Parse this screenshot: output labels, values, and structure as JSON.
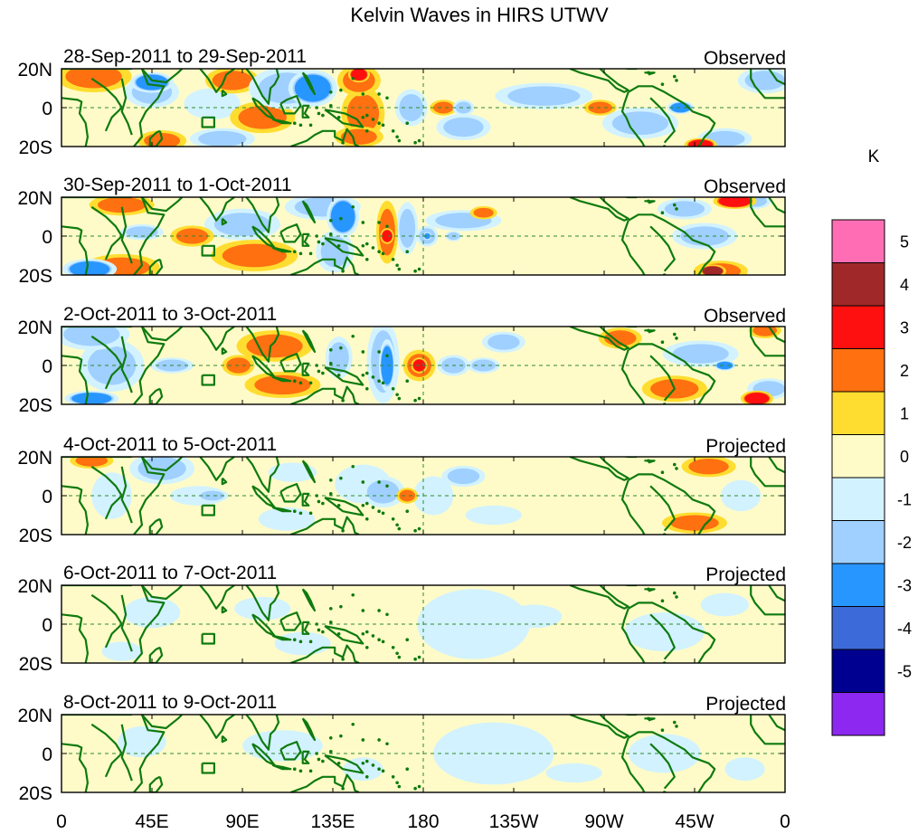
{
  "chart_data": {
    "type": "heatmap",
    "title": "Kelvin Waves in HIRS UTWV",
    "x_tick_labels": [
      "0",
      "45E",
      "90E",
      "135E",
      "180",
      "135W",
      "90W",
      "45W",
      "0"
    ],
    "x_ticks_lon": [
      0,
      45,
      90,
      135,
      180,
      225,
      270,
      315,
      360
    ],
    "y_tick_labels": [
      "20N",
      "0",
      "20S"
    ],
    "y_ticks_lat": [
      20,
      0,
      -20
    ],
    "lat_range": [
      -20,
      20
    ],
    "lon_range": [
      0,
      360
    ],
    "colorbar": {
      "unit_label": "K",
      "tick_labels": [
        "5",
        "4",
        "3",
        "2",
        "1",
        "0",
        "-1",
        "-2",
        "-3",
        "-4",
        "-5"
      ],
      "colors": [
        "#ff6eb4",
        "#a02828",
        "#ff1010",
        "#ff7010",
        "#ffdd30",
        "#fffbc8",
        "#d2f2ff",
        "#a0d0ff",
        "#2896ff",
        "#3c6ad8",
        "#000090",
        "#8c28f0"
      ]
    },
    "panels": [
      {
        "date_range": "28-Sep-2011 to 29-Sep-2011",
        "kind": "Observed",
        "anomalies": [
          {
            "lon": 16,
            "lat": 16,
            "lw": 14,
            "lh": 6,
            "v": 1.5
          },
          {
            "lon": 45,
            "lat": 8,
            "lw": 10,
            "lh": 6,
            "v": -1.5
          },
          {
            "lon": 45,
            "lat": 13,
            "lw": 8,
            "lh": 4,
            "v": -2.2
          },
          {
            "lon": 50,
            "lat": -17,
            "lw": 9,
            "lh": 4,
            "v": 1.5
          },
          {
            "lon": 75,
            "lat": 2,
            "lw": 14,
            "lh": 8,
            "v": -0.6
          },
          {
            "lon": 85,
            "lat": 14,
            "lw": 10,
            "lh": 5,
            "v": 1.3
          },
          {
            "lon": 80,
            "lat": -16,
            "lw": 12,
            "lh": 4,
            "v": -1.6
          },
          {
            "lon": 100,
            "lat": -5,
            "lw": 12,
            "lh": 6,
            "v": 1.3
          },
          {
            "lon": 112,
            "lat": 10,
            "lw": 14,
            "lh": 8,
            "v": -1.3
          },
          {
            "lon": 125,
            "lat": 10,
            "lw": 9,
            "lh": 7,
            "v": -2.2
          },
          {
            "lon": 148,
            "lat": 14,
            "lw": 8,
            "lh": 6,
            "v": 1.6
          },
          {
            "lon": 148,
            "lat": 17,
            "lw": 4,
            "lh": 3,
            "v": 2.6
          },
          {
            "lon": 150,
            "lat": -3,
            "lw": 8,
            "lh": 10,
            "v": 1.4
          },
          {
            "lon": 148,
            "lat": -15,
            "lw": 9,
            "lh": 4,
            "v": 1.8
          },
          {
            "lon": 174,
            "lat": 0,
            "lw": 6,
            "lh": 7,
            "v": -1.3
          },
          {
            "lon": 190,
            "lat": 0,
            "lw": 5,
            "lh": 3,
            "v": 1.3
          },
          {
            "lon": 200,
            "lat": 0,
            "lw": 4,
            "lh": 3,
            "v": -1.3
          },
          {
            "lon": 200,
            "lat": -10,
            "lw": 10,
            "lh": 5,
            "v": -1.3
          },
          {
            "lon": 240,
            "lat": 6,
            "lw": 18,
            "lh": 5,
            "v": -1.3
          },
          {
            "lon": 268,
            "lat": 0,
            "lw": 6,
            "lh": 3,
            "v": 1.3
          },
          {
            "lon": 288,
            "lat": -8,
            "lw": 14,
            "lh": 6,
            "v": -1.3
          },
          {
            "lon": 308,
            "lat": 0,
            "lw": 5,
            "lh": 2.5,
            "v": -2.4
          },
          {
            "lon": 330,
            "lat": -16,
            "lw": 10,
            "lh": 4,
            "v": -1.5
          },
          {
            "lon": 318,
            "lat": -19,
            "lw": 6,
            "lh": 2.5,
            "v": 2.5
          },
          {
            "lon": 350,
            "lat": 14,
            "lw": 10,
            "lh": 5,
            "v": -1.3
          }
        ]
      },
      {
        "date_range": "30-Sep-2011 to 1-Oct-2011",
        "kind": "Observed",
        "anomalies": [
          {
            "lon": 14,
            "lat": -17,
            "lw": 10,
            "lh": 4,
            "v": -2.3
          },
          {
            "lon": 30,
            "lat": -16,
            "lw": 14,
            "lh": 5,
            "v": 1.6
          },
          {
            "lon": 30,
            "lat": 16,
            "lw": 12,
            "lh": 4,
            "v": 1.5
          },
          {
            "lon": 40,
            "lat": 2,
            "lw": 8,
            "lh": 3,
            "v": -1.3
          },
          {
            "lon": 65,
            "lat": 0,
            "lw": 8,
            "lh": 4,
            "v": 1.4
          },
          {
            "lon": 90,
            "lat": 6,
            "lw": 14,
            "lh": 6,
            "v": -1.3
          },
          {
            "lon": 96,
            "lat": -10,
            "lw": 16,
            "lh": 6,
            "v": 1.3
          },
          {
            "lon": 130,
            "lat": 15,
            "lw": 14,
            "lh": 5,
            "v": -1.4
          },
          {
            "lon": 140,
            "lat": 10,
            "lw": 6,
            "lh": 8,
            "v": -2.2
          },
          {
            "lon": 136,
            "lat": -8,
            "lw": 7,
            "lh": 8,
            "v": -1.3
          },
          {
            "lon": 162,
            "lat": 2,
            "lw": 4,
            "lh": 12,
            "v": 1.5
          },
          {
            "lon": 162,
            "lat": 0,
            "lw": 2.5,
            "lh": 3,
            "v": 2.5
          },
          {
            "lon": 172,
            "lat": 4,
            "lw": 4,
            "lh": 10,
            "v": -1.3
          },
          {
            "lon": 182,
            "lat": 0,
            "lw": 4,
            "lh": 4,
            "v": -1.6
          },
          {
            "lon": 182,
            "lat": 0,
            "lw": 1.5,
            "lh": 1.5,
            "v": -2.4
          },
          {
            "lon": 200,
            "lat": 8,
            "lw": 14,
            "lh": 4,
            "v": -1.3
          },
          {
            "lon": 195,
            "lat": 0,
            "lw": 3,
            "lh": 2,
            "v": -1.3
          },
          {
            "lon": 210,
            "lat": 12,
            "lw": 5,
            "lh": 2.5,
            "v": 1.4
          },
          {
            "lon": 320,
            "lat": 0,
            "lw": 12,
            "lh": 5,
            "v": -1.3
          },
          {
            "lon": 310,
            "lat": 14,
            "lw": 10,
            "lh": 4,
            "v": -1.3
          },
          {
            "lon": 328,
            "lat": -18,
            "lw": 10,
            "lh": 4,
            "v": 1.8
          },
          {
            "lon": 324,
            "lat": -18,
            "lw": 5,
            "lh": 2.5,
            "v": 3.2
          },
          {
            "lon": 335,
            "lat": 18,
            "lw": 8,
            "lh": 3,
            "v": 2.6
          },
          {
            "lon": 345,
            "lat": 18,
            "lw": 6,
            "lh": 3,
            "v": -1.3
          }
        ]
      },
      {
        "date_range": "2-Oct-2011 to 3-Oct-2011",
        "kind": "Observed",
        "anomalies": [
          {
            "lon": 15,
            "lat": 16,
            "lw": 14,
            "lh": 6,
            "v": -1.6
          },
          {
            "lon": 15,
            "lat": -17,
            "lw": 10,
            "lh": 3,
            "v": -2.3
          },
          {
            "lon": 25,
            "lat": 0,
            "lw": 12,
            "lh": 10,
            "v": -1.3
          },
          {
            "lon": 55,
            "lat": 0,
            "lw": 8,
            "lh": 3,
            "v": -1.3
          },
          {
            "lon": 88,
            "lat": 0,
            "lw": 6,
            "lh": 4,
            "v": 1.5
          },
          {
            "lon": 106,
            "lat": 10,
            "lw": 14,
            "lh": 6,
            "v": 1.3
          },
          {
            "lon": 110,
            "lat": -10,
            "lw": 14,
            "lh": 5,
            "v": 1.3
          },
          {
            "lon": 138,
            "lat": 4,
            "lw": 5,
            "lh": 8,
            "v": -1.3
          },
          {
            "lon": 160,
            "lat": 2,
            "lw": 6,
            "lh": 16,
            "v": -1.5
          },
          {
            "lon": 162,
            "lat": 0,
            "lw": 3,
            "lh": 10,
            "v": -2.4
          },
          {
            "lon": 178,
            "lat": 0,
            "lw": 6,
            "lh": 6,
            "v": 1.6
          },
          {
            "lon": 178,
            "lat": 0,
            "lw": 3,
            "lh": 3,
            "v": 2.5
          },
          {
            "lon": 195,
            "lat": 0,
            "lw": 6,
            "lh": 4,
            "v": -1.3
          },
          {
            "lon": 210,
            "lat": 0,
            "lw": 6,
            "lh": 3,
            "v": -1.3
          },
          {
            "lon": 220,
            "lat": 12,
            "lw": 8,
            "lh": 4,
            "v": -1.3
          },
          {
            "lon": 278,
            "lat": 14,
            "lw": 8,
            "lh": 4,
            "v": 1.5
          },
          {
            "lon": 330,
            "lat": 0,
            "lw": 4,
            "lh": 2,
            "v": -2.3
          },
          {
            "lon": 318,
            "lat": 6,
            "lw": 14,
            "lh": 5,
            "v": -1.3
          },
          {
            "lon": 305,
            "lat": -12,
            "lw": 12,
            "lh": 5,
            "v": 1.3
          },
          {
            "lon": 350,
            "lat": 18,
            "lw": 6,
            "lh": 3,
            "v": 1.5
          },
          {
            "lon": 346,
            "lat": -17,
            "lw": 6,
            "lh": 3,
            "v": 3.0
          },
          {
            "lon": 352,
            "lat": -12,
            "lw": 8,
            "lh": 4,
            "v": -1.3
          }
        ]
      },
      {
        "date_range": "4-Oct-2011 to 5-Oct-2011",
        "kind": "Projected",
        "anomalies": [
          {
            "lon": 15,
            "lat": 18,
            "lw": 8,
            "lh": 3,
            "v": 1.3
          },
          {
            "lon": 25,
            "lat": 0,
            "lw": 10,
            "lh": 12,
            "v": -0.6
          },
          {
            "lon": 50,
            "lat": 14,
            "lw": 12,
            "lh": 6,
            "v": -1.3
          },
          {
            "lon": 68,
            "lat": 0,
            "lw": 14,
            "lh": 5,
            "v": -0.6
          },
          {
            "lon": 75,
            "lat": 0,
            "lw": 6,
            "lh": 2.5,
            "v": -1.3
          },
          {
            "lon": 115,
            "lat": 12,
            "lw": 12,
            "lh": 5,
            "v": -0.6
          },
          {
            "lon": 112,
            "lat": -12,
            "lw": 14,
            "lh": 6,
            "v": -0.6
          },
          {
            "lon": 150,
            "lat": 6,
            "lw": 14,
            "lh": 10,
            "v": -0.6
          },
          {
            "lon": 160,
            "lat": 2,
            "lw": 8,
            "lh": 6,
            "v": -1.3
          },
          {
            "lon": 172,
            "lat": 0,
            "lw": 4,
            "lh": 3,
            "v": 1.3
          },
          {
            "lon": 185,
            "lat": 0,
            "lw": 10,
            "lh": 10,
            "v": -0.6
          },
          {
            "lon": 200,
            "lat": 10,
            "lw": 8,
            "lh": 4,
            "v": -1.3
          },
          {
            "lon": 215,
            "lat": -10,
            "lw": 14,
            "lh": 5,
            "v": -0.6
          },
          {
            "lon": 315,
            "lat": -14,
            "lw": 12,
            "lh": 4,
            "v": 1.3
          },
          {
            "lon": 322,
            "lat": 15,
            "lw": 10,
            "lh": 4,
            "v": 1.3
          },
          {
            "lon": 338,
            "lat": 0,
            "lw": 10,
            "lh": 8,
            "v": -0.6
          }
        ]
      },
      {
        "date_range": "6-Oct-2011 to 7-Oct-2011",
        "kind": "Projected",
        "anomalies": [
          {
            "lon": 45,
            "lat": 6,
            "lw": 14,
            "lh": 8,
            "v": -0.6
          },
          {
            "lon": 30,
            "lat": -14,
            "lw": 10,
            "lh": 5,
            "v": -0.6
          },
          {
            "lon": 100,
            "lat": 8,
            "lw": 14,
            "lh": 6,
            "v": -0.6
          },
          {
            "lon": 120,
            "lat": -10,
            "lw": 14,
            "lh": 6,
            "v": -0.6
          },
          {
            "lon": 205,
            "lat": 0,
            "lw": 28,
            "lh": 18,
            "v": -0.6
          },
          {
            "lon": 235,
            "lat": 4,
            "lw": 14,
            "lh": 6,
            "v": -0.6
          },
          {
            "lon": 300,
            "lat": -4,
            "lw": 20,
            "lh": 10,
            "v": -0.6
          },
          {
            "lon": 330,
            "lat": 10,
            "lw": 12,
            "lh": 6,
            "v": -0.6
          }
        ]
      },
      {
        "date_range": "8-Oct-2011 to 9-Oct-2011",
        "kind": "Projected",
        "anomalies": [
          {
            "lon": 40,
            "lat": 6,
            "lw": 12,
            "lh": 8,
            "v": -0.6
          },
          {
            "lon": 110,
            "lat": 4,
            "lw": 20,
            "lh": 8,
            "v": -0.6
          },
          {
            "lon": 150,
            "lat": -8,
            "lw": 10,
            "lh": 6,
            "v": -0.6
          },
          {
            "lon": 215,
            "lat": 0,
            "lw": 30,
            "lh": 16,
            "v": -0.6
          },
          {
            "lon": 255,
            "lat": -10,
            "lw": 14,
            "lh": 5,
            "v": -0.6
          },
          {
            "lon": 300,
            "lat": 0,
            "lw": 18,
            "lh": 10,
            "v": -0.6
          },
          {
            "lon": 340,
            "lat": -8,
            "lw": 10,
            "lh": 6,
            "v": -0.6
          }
        ]
      }
    ]
  }
}
